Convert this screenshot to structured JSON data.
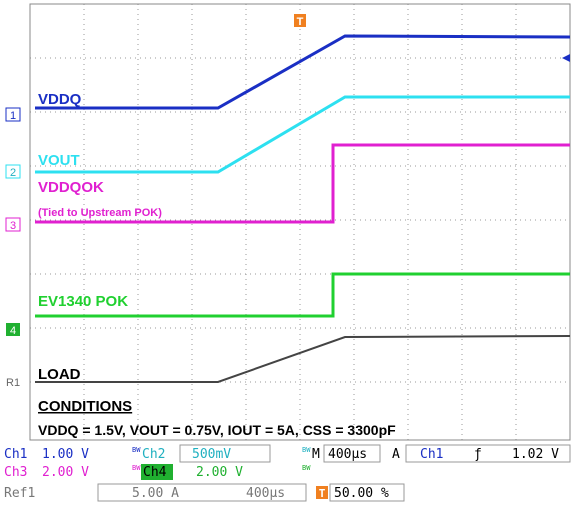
{
  "traces": [
    {
      "label": "VDDQ",
      "marker": "1"
    },
    {
      "label": "VOUT",
      "marker": "2"
    },
    {
      "label": "VDDQOK",
      "note": "(Tied to Upstream POK)",
      "marker": "3"
    },
    {
      "label": "EV1340 POK",
      "marker": "4"
    },
    {
      "label": "LOAD",
      "marker": "R1"
    }
  ],
  "conditions": {
    "title": "CONDITIONS",
    "text": "VDDQ = 1.5V, VOUT = 0.75V, IOUT = 5A, CSS = 3300pF"
  },
  "trigger_marker": "T",
  "status": {
    "row1": {
      "ch1": "Ch1",
      "ch1_scale": "1.00 V",
      "bw1": "BW",
      "ch2": "Ch2",
      "ch2_scale": "500mV",
      "bw2": "BW",
      "m": "M",
      "timebase": "400µs",
      "a": "A",
      "trig_src": "Ch1",
      "slope": "ƒ",
      "trig_level": "1.02 V"
    },
    "row2": {
      "ch3": "Ch3",
      "ch3_scale": "2.00 V",
      "bw3": "BW",
      "ch4": "Ch4",
      "ch4_scale": "2.00 V",
      "bw4": "BW"
    },
    "row3": {
      "ref": "Ref1",
      "ref_scale": "5.00 A",
      "ref_time": "400µs",
      "t": "T",
      "position": "50.00 %"
    }
  }
}
